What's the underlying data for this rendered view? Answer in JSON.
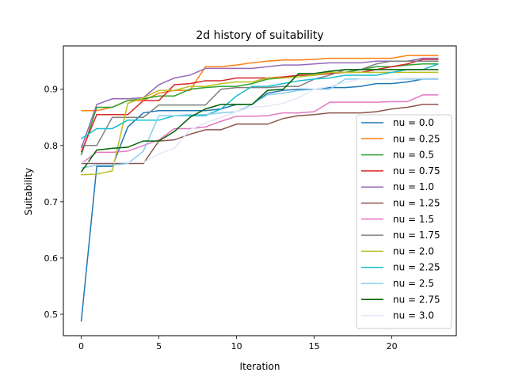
{
  "chart_data": {
    "type": "line",
    "title": "2d history of suitability",
    "xlabel": "Iteration",
    "ylabel": "Suitability",
    "xlim": [
      -1.15,
      24.15
    ],
    "ylim": [
      0.462,
      0.977
    ],
    "xticks": [
      0,
      5,
      10,
      15,
      20
    ],
    "yticks": [
      0.5,
      0.6,
      0.7,
      0.8,
      0.9
    ],
    "ytick_labels": [
      "0.5",
      "0.6",
      "0.7",
      "0.8",
      "0.9"
    ],
    "grid": false,
    "legend_position": "center-right",
    "x": [
      0,
      1,
      2,
      3,
      4,
      5,
      6,
      7,
      8,
      9,
      10,
      11,
      12,
      13,
      14,
      15,
      16,
      17,
      18,
      19,
      20,
      21,
      22,
      23
    ],
    "series": [
      {
        "name": "nu = 0.0",
        "color": "#1f77b4",
        "values": [
          0.487,
          0.763,
          0.763,
          0.833,
          0.858,
          0.862,
          0.862,
          0.862,
          0.862,
          0.865,
          0.873,
          0.873,
          0.893,
          0.898,
          0.9,
          0.9,
          0.903,
          0.903,
          0.905,
          0.91,
          0.91,
          0.913,
          0.918,
          0.918
        ]
      },
      {
        "name": "nu = 0.25",
        "color": "#ff7f0e",
        "values": [
          0.862,
          0.862,
          0.868,
          0.88,
          0.88,
          0.893,
          0.898,
          0.898,
          0.94,
          0.94,
          0.943,
          0.947,
          0.95,
          0.952,
          0.952,
          0.953,
          0.955,
          0.955,
          0.955,
          0.955,
          0.955,
          0.96,
          0.96,
          0.96
        ]
      },
      {
        "name": "nu = 0.5",
        "color": "#2ca02c",
        "values": [
          0.783,
          0.868,
          0.868,
          0.88,
          0.883,
          0.888,
          0.888,
          0.9,
          0.903,
          0.905,
          0.905,
          0.91,
          0.918,
          0.92,
          0.925,
          0.925,
          0.93,
          0.93,
          0.935,
          0.94,
          0.94,
          0.943,
          0.945,
          0.945
        ]
      },
      {
        "name": "nu = 0.75",
        "color": "#d62728",
        "values": [
          0.788,
          0.855,
          0.855,
          0.855,
          0.88,
          0.88,
          0.908,
          0.91,
          0.915,
          0.915,
          0.92,
          0.92,
          0.92,
          0.922,
          0.925,
          0.925,
          0.928,
          0.93,
          0.93,
          0.935,
          0.94,
          0.945,
          0.953,
          0.953
        ]
      },
      {
        "name": "nu = 1.0",
        "color": "#9467bd",
        "values": [
          0.795,
          0.873,
          0.883,
          0.883,
          0.885,
          0.908,
          0.92,
          0.925,
          0.937,
          0.937,
          0.937,
          0.937,
          0.94,
          0.943,
          0.943,
          0.945,
          0.947,
          0.947,
          0.947,
          0.95,
          0.95,
          0.95,
          0.955,
          0.955
        ]
      },
      {
        "name": "nu = 1.25",
        "color": "#8c564b",
        "values": [
          0.768,
          0.768,
          0.768,
          0.768,
          0.768,
          0.808,
          0.81,
          0.82,
          0.828,
          0.828,
          0.838,
          0.838,
          0.838,
          0.848,
          0.853,
          0.855,
          0.858,
          0.858,
          0.858,
          0.86,
          0.865,
          0.868,
          0.873,
          0.873
        ]
      },
      {
        "name": "nu = 1.5",
        "color": "#e377c2",
        "values": [
          0.768,
          0.788,
          0.788,
          0.79,
          0.8,
          0.81,
          0.83,
          0.83,
          0.833,
          0.843,
          0.852,
          0.852,
          0.853,
          0.858,
          0.858,
          0.86,
          0.877,
          0.877,
          0.877,
          0.877,
          0.878,
          0.878,
          0.89,
          0.89
        ]
      },
      {
        "name": "nu = 1.75",
        "color": "#7f7f7f",
        "values": [
          0.8,
          0.8,
          0.85,
          0.85,
          0.85,
          0.872,
          0.872,
          0.872,
          0.872,
          0.9,
          0.903,
          0.903,
          0.903,
          0.905,
          0.905,
          0.918,
          0.925,
          0.935,
          0.935,
          0.945,
          0.95,
          0.95,
          0.95,
          0.95
        ]
      },
      {
        "name": "nu = 2.0",
        "color": "#bcbd22",
        "values": [
          0.748,
          0.749,
          0.755,
          0.875,
          0.885,
          0.898,
          0.898,
          0.905,
          0.905,
          0.91,
          0.913,
          0.913,
          0.92,
          0.92,
          0.922,
          0.925,
          0.93,
          0.93,
          0.93,
          0.93,
          0.93,
          0.93,
          0.93,
          0.93
        ]
      },
      {
        "name": "nu = 2.25",
        "color": "#17becf",
        "values": [
          0.812,
          0.83,
          0.83,
          0.845,
          0.845,
          0.845,
          0.853,
          0.853,
          0.853,
          0.865,
          0.888,
          0.905,
          0.905,
          0.91,
          0.915,
          0.918,
          0.92,
          0.925,
          0.925,
          0.925,
          0.93,
          0.935,
          0.935,
          0.945
        ]
      },
      {
        "name": "nu = 2.5",
        "color": "#87ceeb",
        "values": [
          0.76,
          0.765,
          0.765,
          0.768,
          0.79,
          0.853,
          0.853,
          0.855,
          0.855,
          0.858,
          0.86,
          0.873,
          0.89,
          0.893,
          0.898,
          0.9,
          0.9,
          0.918,
          0.918,
          0.918,
          0.918,
          0.918,
          0.918,
          0.918
        ]
      },
      {
        "name": "nu = 2.75",
        "color": "#006400",
        "values": [
          0.753,
          0.792,
          0.795,
          0.797,
          0.808,
          0.808,
          0.825,
          0.85,
          0.865,
          0.873,
          0.873,
          0.873,
          0.898,
          0.9,
          0.928,
          0.928,
          0.932,
          0.935,
          0.935,
          0.935,
          0.935,
          0.935,
          0.935,
          0.935
        ]
      },
      {
        "name": "nu = 3.0",
        "color": "#e6e6fa",
        "values": [
          0.77,
          0.77,
          0.77,
          0.77,
          0.77,
          0.785,
          0.795,
          0.828,
          0.84,
          0.85,
          0.86,
          0.868,
          0.87,
          0.875,
          0.885,
          0.9,
          0.905,
          0.912,
          0.918,
          0.918,
          0.918,
          0.92,
          0.92,
          0.92
        ]
      }
    ]
  }
}
